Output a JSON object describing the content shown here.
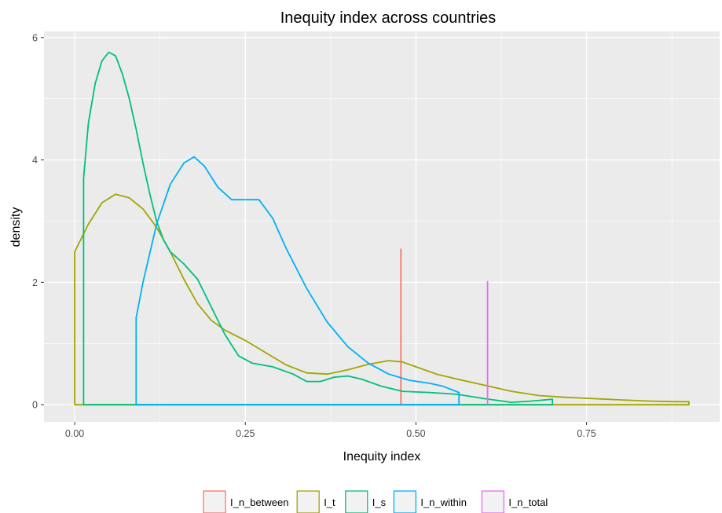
{
  "chart_data": {
    "type": "area",
    "title": "Inequity index across countries",
    "xlabel": "Inequity index",
    "ylabel": "density",
    "xlim": [
      -0.045,
      0.945
    ],
    "ylim": [
      -0.28,
      6.1
    ],
    "x_ticks": [
      0.0,
      0.25,
      0.5,
      0.75
    ],
    "x_tick_labels": [
      "0.00",
      "0.25",
      "0.50",
      "0.75"
    ],
    "y_ticks": [
      0,
      2,
      4,
      6
    ],
    "y_tick_labels": [
      "0",
      "2",
      "4",
      "6"
    ],
    "grid": true,
    "legend_position": "bottom",
    "series": [
      {
        "name": "I_n_between",
        "color": "#F8766D",
        "x": [
          0.478,
          0.478
        ],
        "y": [
          0,
          2.55
        ]
      },
      {
        "name": "I_t",
        "color": "#A3A500",
        "x": [
          0.0,
          0.0,
          0.02,
          0.04,
          0.06,
          0.08,
          0.1,
          0.12,
          0.14,
          0.16,
          0.18,
          0.2,
          0.22,
          0.25,
          0.28,
          0.31,
          0.34,
          0.37,
          0.4,
          0.43,
          0.46,
          0.48,
          0.5,
          0.53,
          0.56,
          0.6,
          0.64,
          0.68,
          0.72,
          0.76,
          0.8,
          0.84,
          0.88,
          0.9,
          0.9
        ],
        "y": [
          0,
          2.5,
          2.95,
          3.3,
          3.44,
          3.38,
          3.2,
          2.9,
          2.5,
          2.05,
          1.65,
          1.38,
          1.22,
          1.05,
          0.85,
          0.65,
          0.52,
          0.5,
          0.57,
          0.66,
          0.72,
          0.7,
          0.62,
          0.5,
          0.42,
          0.32,
          0.22,
          0.15,
          0.12,
          0.1,
          0.08,
          0.06,
          0.05,
          0.05,
          0
        ]
      },
      {
        "name": "I_s",
        "color": "#00BF7D",
        "x": [
          0.013,
          0.013,
          0.02,
          0.03,
          0.04,
          0.05,
          0.06,
          0.07,
          0.08,
          0.09,
          0.1,
          0.11,
          0.12,
          0.13,
          0.14,
          0.16,
          0.18,
          0.2,
          0.22,
          0.24,
          0.26,
          0.29,
          0.32,
          0.34,
          0.36,
          0.38,
          0.4,
          0.42,
          0.45,
          0.48,
          0.52,
          0.56,
          0.6,
          0.64,
          0.67,
          0.7,
          0.7
        ],
        "y": [
          0,
          3.7,
          4.6,
          5.25,
          5.62,
          5.76,
          5.7,
          5.4,
          5.0,
          4.5,
          3.95,
          3.45,
          3.0,
          2.7,
          2.5,
          2.3,
          2.05,
          1.6,
          1.15,
          0.8,
          0.68,
          0.62,
          0.5,
          0.38,
          0.38,
          0.45,
          0.47,
          0.42,
          0.3,
          0.22,
          0.2,
          0.17,
          0.1,
          0.04,
          0.06,
          0.09,
          0
        ]
      },
      {
        "name": "I_n_within",
        "color": "#00B0F6",
        "x": [
          0.09,
          0.09,
          0.1,
          0.12,
          0.14,
          0.16,
          0.175,
          0.19,
          0.21,
          0.23,
          0.25,
          0.27,
          0.29,
          0.31,
          0.34,
          0.37,
          0.4,
          0.43,
          0.46,
          0.49,
          0.52,
          0.54,
          0.563,
          0.563
        ],
        "y": [
          0,
          1.42,
          2.0,
          2.95,
          3.6,
          3.95,
          4.05,
          3.9,
          3.55,
          3.35,
          3.35,
          3.35,
          3.05,
          2.55,
          1.9,
          1.35,
          0.95,
          0.68,
          0.5,
          0.4,
          0.35,
          0.3,
          0.2,
          0
        ]
      },
      {
        "name": "I_n_total",
        "color": "#E76BF3",
        "x": [
          0.605,
          0.605
        ],
        "y": [
          0,
          2.02
        ]
      }
    ]
  }
}
